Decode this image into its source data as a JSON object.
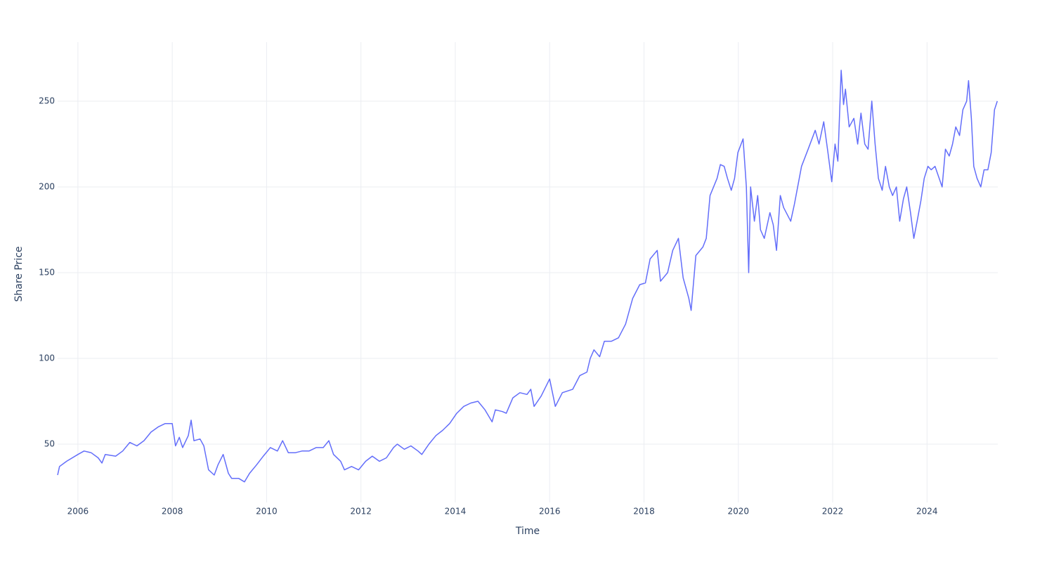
{
  "chart_data": {
    "type": "line",
    "x_label": "Time",
    "y_label": "Share Price",
    "x": [
      2005.57,
      2005.61,
      2005.76,
      2006.0,
      2006.13,
      2006.28,
      2006.43,
      2006.51,
      2006.58,
      2006.8,
      2006.95,
      2007.1,
      2007.25,
      2007.4,
      2007.55,
      2007.7,
      2007.85,
      2008.0,
      2008.07,
      2008.15,
      2008.22,
      2008.34,
      2008.4,
      2008.46,
      2008.59,
      2008.67,
      2008.77,
      2008.89,
      2008.97,
      2009.08,
      2009.19,
      2009.26,
      2009.41,
      2009.53,
      2009.64,
      2009.79,
      2009.93,
      2010.08,
      2010.23,
      2010.34,
      2010.46,
      2010.61,
      2010.75,
      2010.9,
      2011.05,
      2011.2,
      2011.32,
      2011.42,
      2011.57,
      2011.65,
      2011.8,
      2011.95,
      2012.1,
      2012.24,
      2012.39,
      2012.54,
      2012.69,
      2012.77,
      2012.92,
      2013.06,
      2013.21,
      2013.29,
      2013.44,
      2013.59,
      2013.73,
      2013.88,
      2014.03,
      2014.18,
      2014.33,
      2014.48,
      2014.63,
      2014.78,
      2014.85,
      2015.0,
      2015.08,
      2015.22,
      2015.37,
      2015.52,
      2015.6,
      2015.67,
      2015.82,
      2016.0,
      2016.12,
      2016.27,
      2016.49,
      2016.64,
      2016.79,
      2016.86,
      2016.94,
      2017.06,
      2017.16,
      2017.31,
      2017.46,
      2017.61,
      2017.76,
      2017.91,
      2018.03,
      2018.13,
      2018.28,
      2018.35,
      2018.5,
      2018.61,
      2018.73,
      2018.83,
      2018.95,
      2019.0,
      2019.1,
      2019.25,
      2019.32,
      2019.4,
      2019.55,
      2019.62,
      2019.7,
      2019.77,
      2019.85,
      2019.92,
      2019.99,
      2020.1,
      2020.17,
      2020.22,
      2020.26,
      2020.34,
      2020.41,
      2020.47,
      2020.55,
      2020.67,
      2020.74,
      2020.81,
      2020.89,
      2020.96,
      2021.11,
      2021.19,
      2021.34,
      2021.48,
      2021.63,
      2021.71,
      2021.81,
      2021.9,
      2021.98,
      2022.05,
      2022.11,
      2022.18,
      2022.23,
      2022.27,
      2022.35,
      2022.45,
      2022.53,
      2022.6,
      2022.68,
      2022.75,
      2022.83,
      2022.9,
      2022.97,
      2023.05,
      2023.12,
      2023.2,
      2023.27,
      2023.35,
      2023.42,
      2023.5,
      2023.57,
      2023.65,
      2023.72,
      2023.79,
      2023.87,
      2023.94,
      2024.02,
      2024.09,
      2024.17,
      2024.32,
      2024.39,
      2024.47,
      2024.54,
      2024.61,
      2024.69,
      2024.76,
      2024.84,
      2024.88,
      2024.94,
      2024.99,
      2025.06,
      2025.14,
      2025.21,
      2025.29,
      2025.36,
      2025.43,
      2025.49
    ],
    "values": [
      32,
      37,
      40,
      44,
      46,
      45,
      42,
      39,
      44,
      43,
      46,
      51,
      49,
      52,
      57,
      60,
      62,
      62,
      49,
      54,
      48,
      55,
      64,
      52,
      53,
      49,
      35,
      32,
      38,
      44,
      33,
      30,
      30,
      28,
      33,
      38,
      43,
      48,
      46,
      52,
      45,
      45,
      46,
      46,
      48,
      48,
      52,
      44,
      40,
      35,
      37,
      35,
      40,
      43,
      40,
      42,
      48,
      50,
      47,
      49,
      46,
      44,
      50,
      55,
      58,
      62,
      68,
      72,
      74,
      75,
      70,
      63,
      70,
      69,
      68,
      77,
      80,
      79,
      82,
      72,
      78,
      88,
      72,
      80,
      82,
      90,
      92,
      100,
      105,
      101,
      110,
      110,
      112,
      120,
      135,
      143,
      144,
      158,
      163,
      145,
      150,
      163,
      170,
      147,
      135,
      128,
      160,
      165,
      170,
      195,
      205,
      213,
      212,
      205,
      198,
      205,
      220,
      228,
      200,
      150,
      200,
      180,
      195,
      175,
      170,
      185,
      178,
      163,
      195,
      188,
      180,
      190,
      212,
      222,
      233,
      225,
      238,
      220,
      203,
      225,
      215,
      268,
      248,
      257,
      235,
      240,
      225,
      243,
      225,
      222,
      250,
      225,
      205,
      198,
      212,
      200,
      195,
      200,
      180,
      193,
      200,
      185,
      170,
      180,
      192,
      205,
      212,
      210,
      212,
      200,
      222,
      218,
      225,
      235,
      230,
      245,
      250,
      262,
      240,
      212,
      205,
      200,
      210,
      210,
      220,
      245,
      250
    ],
    "color": "#636efa",
    "xlim": [
      2005.57,
      2025.5
    ],
    "xticks": [
      2006,
      2008,
      2010,
      2012,
      2014,
      2016,
      2018,
      2020,
      2022,
      2024
    ],
    "ylim": [
      16,
      284.4
    ],
    "yticks": [
      50,
      100,
      150,
      200,
      250
    ],
    "grid": true
  }
}
